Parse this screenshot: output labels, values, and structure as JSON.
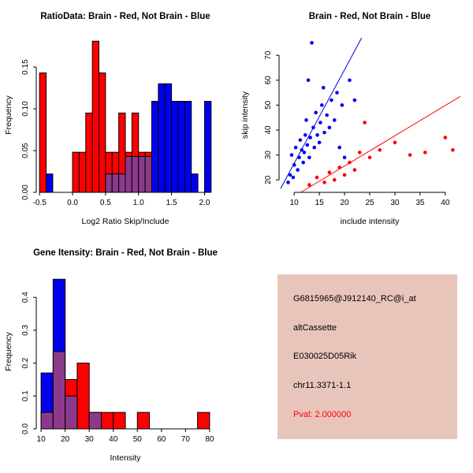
{
  "background": "#FFFFFF",
  "chart_data": [
    {
      "id": "hist-ratio",
      "type": "bar",
      "subtype": "overlaid-histogram",
      "title": "RatioData: Brain - Red, Not Brain - Blue",
      "xlabel": "Log2 Ratio Skip/Include",
      "ylabel": "Frequency",
      "bin_width": 0.1,
      "bin_starts": [
        -0.5,
        -0.4,
        -0.3,
        -0.2,
        -0.1,
        0.0,
        0.1,
        0.2,
        0.3,
        0.4,
        0.5,
        0.6,
        0.7,
        0.8,
        0.9,
        1.0,
        1.1,
        1.2,
        1.3,
        1.4,
        1.5,
        1.6,
        1.7,
        1.8,
        1.9,
        2.0
      ],
      "series": [
        {
          "name": "Brain",
          "color": "#FF0000",
          "values": [
            0.143,
            0,
            0,
            0,
            0,
            0.048,
            0.048,
            0.095,
            0.181,
            0.143,
            0.048,
            0.048,
            0.095,
            0.048,
            0.095,
            0.048,
            0.048,
            0,
            0,
            0,
            0,
            0,
            0,
            0,
            0,
            0
          ]
        },
        {
          "name": "Not Brain",
          "color": "#0000EE",
          "values": [
            0,
            0.022,
            0,
            0,
            0,
            0,
            0,
            0,
            0,
            0,
            0.022,
            0.022,
            0.022,
            0.043,
            0.043,
            0.043,
            0.043,
            0.109,
            0.13,
            0.13,
            0.109,
            0.109,
            0.109,
            0.022,
            0,
            0.109
          ]
        }
      ],
      "overlap_color": "#8B3A8B",
      "xlim": [
        -0.55,
        2.15
      ],
      "ylim": [
        0,
        0.185
      ],
      "xticks": [
        -0.5,
        0.0,
        0.5,
        1.0,
        1.5,
        2.0
      ],
      "xtick_labels": [
        "-0.5",
        "0.0",
        "0.5",
        "1.0",
        "1.5",
        "2.0"
      ],
      "yticks": [
        0.0,
        0.05,
        0.1,
        0.15
      ],
      "ytick_labels": [
        "0.00",
        "0.05",
        "0.10",
        "0.15"
      ]
    },
    {
      "id": "scatter-intensity",
      "type": "scatter",
      "title": "Brain - Red, Not Brain - Blue",
      "xlabel": "include intensity",
      "ylabel": "skip intensity",
      "xlim": [
        7,
        43
      ],
      "ylim": [
        15,
        77
      ],
      "xticks": [
        10,
        15,
        20,
        25,
        30,
        35,
        40
      ],
      "xtick_labels": [
        "10",
        "15",
        "20",
        "25",
        "30",
        "35",
        "40"
      ],
      "yticks": [
        20,
        30,
        40,
        50,
        60,
        70
      ],
      "ytick_labels": [
        "20",
        "30",
        "40",
        "50",
        "60",
        "70"
      ],
      "series": [
        {
          "name": "Brain",
          "color": "#FF0000",
          "points": [
            [
              13,
              18
            ],
            [
              14.5,
              21
            ],
            [
              16,
              19
            ],
            [
              17,
              23
            ],
            [
              18,
              20
            ],
            [
              19,
              25
            ],
            [
              20,
              22
            ],
            [
              21,
              27
            ],
            [
              22,
              24
            ],
            [
              23,
              31
            ],
            [
              24,
              43
            ],
            [
              25,
              29
            ],
            [
              27,
              32
            ],
            [
              30,
              35
            ],
            [
              33,
              30
            ],
            [
              36,
              31
            ],
            [
              40,
              37
            ],
            [
              41.5,
              32
            ]
          ],
          "fit_line": {
            "x": [
              11.3,
              43
            ],
            "y": [
              15,
              53.5
            ]
          }
        },
        {
          "name": "Not Brain",
          "color": "#0000EE",
          "points": [
            [
              8.8,
              19
            ],
            [
              9.2,
              22
            ],
            [
              9.5,
              30
            ],
            [
              9.8,
              21
            ],
            [
              10,
              26
            ],
            [
              10.3,
              33
            ],
            [
              10.7,
              24
            ],
            [
              11,
              29
            ],
            [
              11.2,
              36
            ],
            [
              11.5,
              32
            ],
            [
              11.8,
              27
            ],
            [
              12,
              31
            ],
            [
              12.2,
              38
            ],
            [
              12.4,
              44
            ],
            [
              12.6,
              34
            ],
            [
              12.8,
              60
            ],
            [
              13,
              29
            ],
            [
              13.2,
              37
            ],
            [
              13.5,
              75
            ],
            [
              13.8,
              41
            ],
            [
              14,
              33
            ],
            [
              14.3,
              47
            ],
            [
              14.6,
              38
            ],
            [
              15,
              35
            ],
            [
              15.2,
              43
            ],
            [
              15.5,
              50
            ],
            [
              15.8,
              57
            ],
            [
              16,
              39
            ],
            [
              16.5,
              46
            ],
            [
              17,
              41
            ],
            [
              17.4,
              52
            ],
            [
              18,
              44
            ],
            [
              18.5,
              55
            ],
            [
              19,
              33
            ],
            [
              19.5,
              50
            ],
            [
              20,
              29
            ],
            [
              21,
              60
            ],
            [
              22,
              52
            ]
          ],
          "fit_line": {
            "x": [
              7.3,
              23.4
            ],
            "y": [
              16.5,
              77
            ]
          }
        }
      ]
    },
    {
      "id": "hist-gene",
      "type": "bar",
      "subtype": "overlaid-histogram",
      "title": "Gene Itensity: Brain - Red, Not Brain - Blue",
      "xlabel": "Intensity",
      "ylabel": "Frequency",
      "bin_width": 5,
      "bin_starts": [
        10,
        15,
        20,
        25,
        30,
        35,
        40,
        45,
        50,
        55,
        60,
        65,
        70,
        75
      ],
      "series": [
        {
          "name": "Brain",
          "color": "#FF0000",
          "values": [
            0.05,
            0.235,
            0.15,
            0.2,
            0.05,
            0.05,
            0.05,
            0,
            0.05,
            0,
            0,
            0,
            0,
            0.05
          ]
        },
        {
          "name": "Not Brain",
          "color": "#0000EE",
          "values": [
            0.17,
            0.455,
            0.1,
            0,
            0.05,
            0,
            0,
            0,
            0,
            0,
            0,
            0,
            0,
            0
          ]
        }
      ],
      "overlap_color": "#8B3A8B",
      "xlim": [
        8,
        82
      ],
      "ylim": [
        0,
        0.47
      ],
      "xticks": [
        10,
        20,
        30,
        40,
        50,
        60,
        70,
        80
      ],
      "xtick_labels": [
        "10",
        "20",
        "30",
        "40",
        "50",
        "60",
        "70",
        "80"
      ],
      "yticks": [
        0.0,
        0.1,
        0.2,
        0.3,
        0.4
      ],
      "ytick_labels": [
        "0.0",
        "0.1",
        "0.2",
        "0.3",
        "0.4"
      ]
    }
  ],
  "info_box": {
    "bg": "#E8C5BB",
    "lines": [
      {
        "text": "G6815965@J912140_RC@i_at",
        "color": "#000000"
      },
      {
        "text": "altCassette",
        "color": "#000000"
      },
      {
        "text": "E030025D05Rik",
        "color": "#000000"
      },
      {
        "text": "chr11.3371-1.1",
        "color": "#000000"
      },
      {
        "text": "Pval: 2.000000",
        "color": "#FF0000"
      }
    ]
  }
}
